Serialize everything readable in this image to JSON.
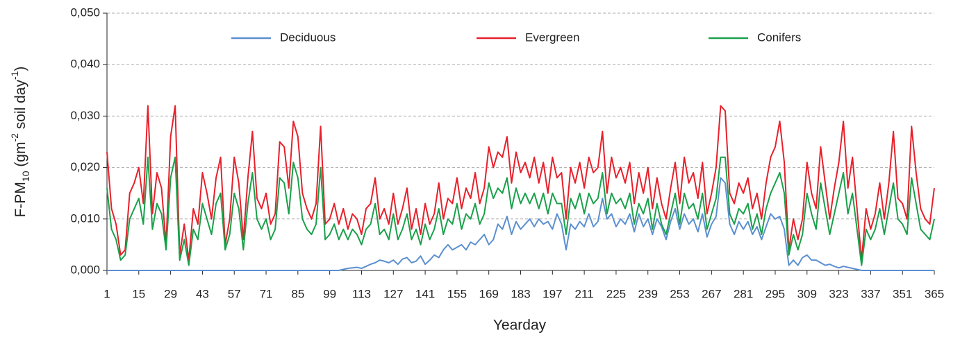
{
  "chart_data": {
    "type": "line",
    "ylabel": [
      "F-PM",
      "10",
      " (gm",
      "-2",
      " soil day",
      "-1",
      ")"
    ],
    "xlabel": "Yearday",
    "xlim": [
      1,
      365
    ],
    "xticks": [
      1,
      15,
      29,
      43,
      57,
      71,
      85,
      99,
      113,
      127,
      141,
      155,
      169,
      183,
      197,
      211,
      225,
      239,
      253,
      267,
      281,
      295,
      309,
      323,
      337,
      351,
      365
    ],
    "ylim": [
      0,
      0.05
    ],
    "yticks": [
      {
        "value": 0,
        "label": "0,000"
      },
      {
        "value": 0.01,
        "label": "0,010"
      },
      {
        "value": 0.02,
        "label": "0,020"
      },
      {
        "value": 0.03,
        "label": "0,030"
      },
      {
        "value": 0.04,
        "label": "0,040"
      },
      {
        "value": 0.05,
        "label": "0,050"
      }
    ],
    "grid": true,
    "legend": "top",
    "x": [
      1,
      3,
      5,
      7,
      9,
      11,
      13,
      15,
      17,
      19,
      21,
      23,
      25,
      27,
      29,
      31,
      33,
      35,
      37,
      39,
      41,
      43,
      45,
      47,
      49,
      51,
      53,
      55,
      57,
      59,
      61,
      63,
      65,
      67,
      69,
      71,
      73,
      75,
      77,
      79,
      81,
      83,
      85,
      87,
      89,
      91,
      93,
      95,
      97,
      99,
      101,
      103,
      105,
      107,
      109,
      111,
      113,
      115,
      117,
      119,
      121,
      123,
      125,
      127,
      129,
      131,
      133,
      135,
      137,
      139,
      141,
      143,
      145,
      147,
      149,
      151,
      153,
      155,
      157,
      159,
      161,
      163,
      165,
      167,
      169,
      171,
      173,
      175,
      177,
      179,
      181,
      183,
      185,
      187,
      189,
      191,
      193,
      195,
      197,
      199,
      201,
      203,
      205,
      207,
      209,
      211,
      213,
      215,
      217,
      219,
      221,
      223,
      225,
      227,
      229,
      231,
      233,
      235,
      237,
      239,
      241,
      243,
      245,
      247,
      249,
      251,
      253,
      255,
      257,
      259,
      261,
      263,
      265,
      267,
      269,
      271,
      273,
      275,
      277,
      279,
      281,
      283,
      285,
      287,
      289,
      291,
      293,
      295,
      297,
      299,
      301,
      303,
      305,
      307,
      309,
      311,
      313,
      315,
      317,
      319,
      321,
      323,
      325,
      327,
      329,
      331,
      333,
      335,
      337,
      339,
      341,
      343,
      345,
      347,
      349,
      351,
      353,
      355,
      357,
      359,
      361,
      363,
      365
    ],
    "series": [
      {
        "name": "Deciduous",
        "color": "#5b8fd0",
        "values": [
          0,
          0,
          0,
          0,
          0,
          0,
          0,
          0,
          0,
          0,
          0,
          0,
          0,
          0,
          0,
          0,
          0,
          0,
          0,
          0,
          0,
          0,
          0,
          0,
          0,
          0,
          0,
          0,
          0,
          0,
          0,
          0,
          0,
          0,
          0,
          0,
          0,
          0,
          0,
          0,
          0,
          0,
          0,
          0,
          0,
          0,
          0,
          0,
          0,
          0,
          0,
          0,
          0.0002,
          0.0004,
          0.0005,
          0.0006,
          0.0004,
          0.0008,
          0.0012,
          0.0015,
          0.002,
          0.0018,
          0.0015,
          0.002,
          0.0012,
          0.0022,
          0.0025,
          0.0015,
          0.0018,
          0.0028,
          0.0012,
          0.002,
          0.003,
          0.0025,
          0.004,
          0.005,
          0.004,
          0.0045,
          0.005,
          0.004,
          0.0055,
          0.005,
          0.006,
          0.007,
          0.005,
          0.006,
          0.009,
          0.008,
          0.0105,
          0.007,
          0.0095,
          0.008,
          0.009,
          0.01,
          0.0085,
          0.01,
          0.009,
          0.0095,
          0.008,
          0.011,
          0.009,
          0.004,
          0.009,
          0.008,
          0.0095,
          0.0085,
          0.011,
          0.0085,
          0.0095,
          0.014,
          0.01,
          0.011,
          0.0085,
          0.01,
          0.009,
          0.011,
          0.0075,
          0.011,
          0.0085,
          0.01,
          0.007,
          0.01,
          0.0085,
          0.006,
          0.0095,
          0.012,
          0.008,
          0.011,
          0.009,
          0.01,
          0.0075,
          0.011,
          0.0065,
          0.009,
          0.0105,
          0.018,
          0.017,
          0.009,
          0.007,
          0.0095,
          0.008,
          0.0095,
          0.007,
          0.0085,
          0.006,
          0.0085,
          0.011,
          0.01,
          0.0105,
          0.008,
          0.001,
          0.002,
          0.001,
          0.0025,
          0.003,
          0.002,
          0.002,
          0.0015,
          0.001,
          0.0012,
          0.0008,
          0.0005,
          0.0008,
          0.0006,
          0.0004,
          0.0002,
          0,
          0,
          0,
          0,
          0,
          0,
          0,
          0,
          0,
          0,
          0,
          0,
          0,
          0,
          0,
          0,
          0
        ]
      },
      {
        "name": "Evergreen",
        "color": "#e8202a",
        "values": [
          0.023,
          0.012,
          0.009,
          0.003,
          0.004,
          0.015,
          0.017,
          0.02,
          0.013,
          0.032,
          0.011,
          0.019,
          0.016,
          0.005,
          0.026,
          0.032,
          0.003,
          0.009,
          0.002,
          0.012,
          0.009,
          0.019,
          0.015,
          0.01,
          0.018,
          0.022,
          0.005,
          0.01,
          0.022,
          0.017,
          0.006,
          0.018,
          0.027,
          0.014,
          0.012,
          0.015,
          0.009,
          0.011,
          0.025,
          0.024,
          0.016,
          0.029,
          0.026,
          0.015,
          0.012,
          0.01,
          0.013,
          0.028,
          0.009,
          0.01,
          0.013,
          0.009,
          0.012,
          0.008,
          0.011,
          0.01,
          0.007,
          0.012,
          0.013,
          0.018,
          0.01,
          0.012,
          0.009,
          0.015,
          0.009,
          0.012,
          0.016,
          0.008,
          0.012,
          0.007,
          0.013,
          0.009,
          0.011,
          0.017,
          0.01,
          0.014,
          0.013,
          0.018,
          0.012,
          0.016,
          0.014,
          0.019,
          0.013,
          0.016,
          0.024,
          0.02,
          0.023,
          0.022,
          0.026,
          0.017,
          0.023,
          0.019,
          0.021,
          0.018,
          0.022,
          0.017,
          0.021,
          0.015,
          0.022,
          0.018,
          0.019,
          0.01,
          0.02,
          0.017,
          0.021,
          0.016,
          0.022,
          0.019,
          0.02,
          0.027,
          0.015,
          0.022,
          0.018,
          0.02,
          0.017,
          0.021,
          0.013,
          0.019,
          0.015,
          0.02,
          0.012,
          0.018,
          0.013,
          0.01,
          0.016,
          0.021,
          0.013,
          0.022,
          0.017,
          0.019,
          0.014,
          0.021,
          0.011,
          0.015,
          0.02,
          0.032,
          0.031,
          0.015,
          0.013,
          0.017,
          0.015,
          0.018,
          0.012,
          0.015,
          0.01,
          0.017,
          0.022,
          0.024,
          0.029,
          0.021,
          0.004,
          0.01,
          0.006,
          0.01,
          0.021,
          0.015,
          0.012,
          0.024,
          0.017,
          0.01,
          0.016,
          0.021,
          0.029,
          0.016,
          0.022,
          0.012,
          0.002,
          0.012,
          0.008,
          0.011,
          0.017,
          0.01,
          0.017,
          0.027,
          0.014,
          0.013,
          0.01,
          0.028,
          0.019,
          0.012,
          0.01,
          0.009,
          0.016
        ]
      },
      {
        "name": "Conifers",
        "color": "#1aa04a",
        "values": [
          0.016,
          0.008,
          0.006,
          0.002,
          0.003,
          0.01,
          0.012,
          0.014,
          0.009,
          0.022,
          0.008,
          0.013,
          0.011,
          0.004,
          0.018,
          0.022,
          0.002,
          0.006,
          0.001,
          0.008,
          0.006,
          0.013,
          0.01,
          0.007,
          0.013,
          0.015,
          0.004,
          0.007,
          0.015,
          0.012,
          0.004,
          0.013,
          0.019,
          0.01,
          0.008,
          0.01,
          0.006,
          0.008,
          0.018,
          0.017,
          0.011,
          0.021,
          0.018,
          0.01,
          0.008,
          0.007,
          0.009,
          0.02,
          0.006,
          0.007,
          0.009,
          0.006,
          0.008,
          0.006,
          0.008,
          0.007,
          0.005,
          0.008,
          0.009,
          0.013,
          0.007,
          0.008,
          0.006,
          0.011,
          0.006,
          0.008,
          0.011,
          0.006,
          0.008,
          0.005,
          0.009,
          0.006,
          0.008,
          0.012,
          0.007,
          0.01,
          0.009,
          0.013,
          0.008,
          0.011,
          0.01,
          0.013,
          0.009,
          0.011,
          0.017,
          0.014,
          0.016,
          0.015,
          0.018,
          0.012,
          0.016,
          0.013,
          0.015,
          0.013,
          0.015,
          0.012,
          0.015,
          0.011,
          0.015,
          0.013,
          0.013,
          0.007,
          0.014,
          0.012,
          0.015,
          0.011,
          0.015,
          0.013,
          0.014,
          0.019,
          0.011,
          0.015,
          0.013,
          0.014,
          0.012,
          0.015,
          0.009,
          0.013,
          0.011,
          0.014,
          0.008,
          0.013,
          0.009,
          0.007,
          0.011,
          0.015,
          0.009,
          0.015,
          0.012,
          0.013,
          0.01,
          0.015,
          0.008,
          0.011,
          0.014,
          0.022,
          0.022,
          0.011,
          0.009,
          0.012,
          0.011,
          0.013,
          0.008,
          0.011,
          0.007,
          0.012,
          0.015,
          0.017,
          0.019,
          0.015,
          0.003,
          0.007,
          0.004,
          0.007,
          0.015,
          0.011,
          0.008,
          0.017,
          0.012,
          0.007,
          0.011,
          0.015,
          0.019,
          0.011,
          0.015,
          0.008,
          0.001,
          0.008,
          0.006,
          0.008,
          0.012,
          0.007,
          0.012,
          0.017,
          0.01,
          0.009,
          0.007,
          0.018,
          0.013,
          0.008,
          0.007,
          0.006,
          0.01
        ]
      }
    ]
  }
}
